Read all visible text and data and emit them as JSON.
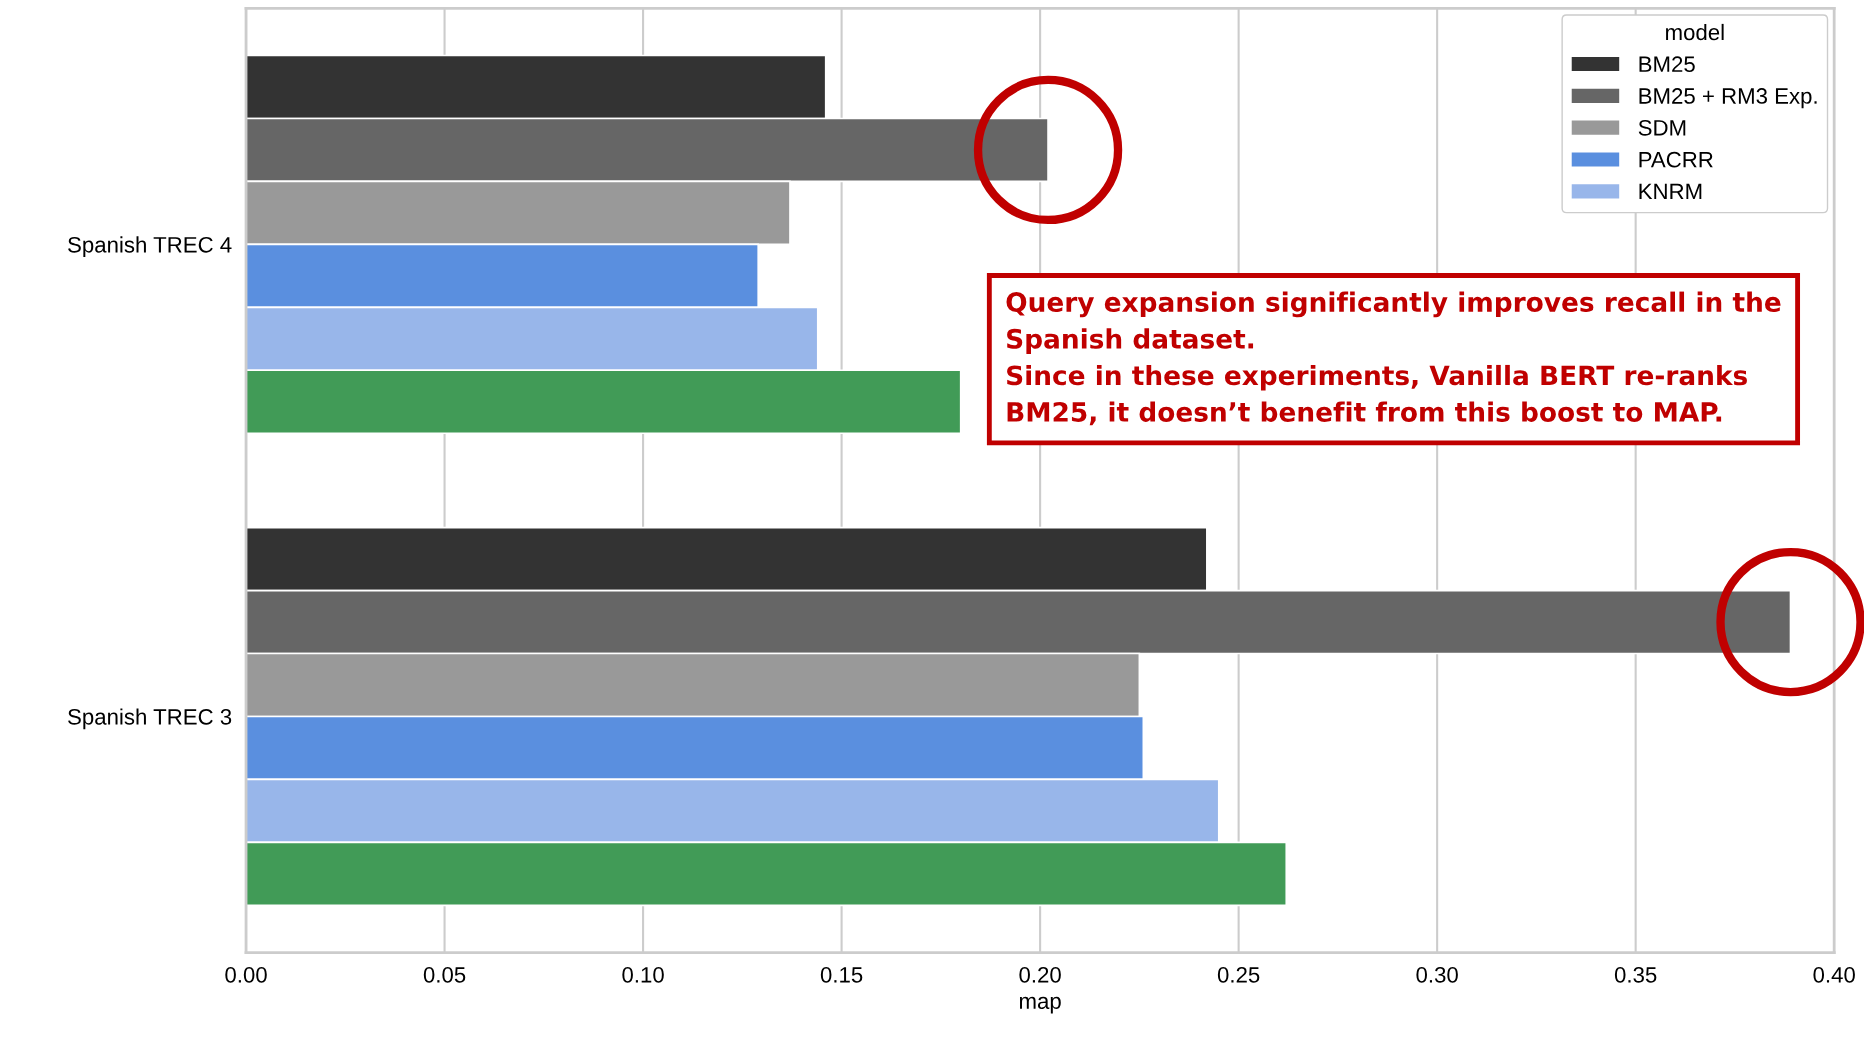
{
  "chart_data": {
    "type": "bar",
    "orientation": "horizontal",
    "xlabel": "map",
    "legend_title": "model",
    "legend": "top right",
    "grid": "x",
    "categories": [
      "Spanish TREC 4",
      "Spanish TREC 3"
    ],
    "xlim": [
      0,
      0.4
    ],
    "xticks": [
      {
        "value": 0,
        "label": "0.00"
      },
      0.05,
      {
        "value": 0.1,
        "label": "0.10"
      },
      0.15,
      {
        "value": 0.2,
        "label": "0.20"
      },
      0.25,
      {
        "value": 0.3,
        "label": "0.30"
      },
      0.35,
      {
        "value": 0.4,
        "label": "0.40"
      }
    ],
    "series": [
      {
        "name": "BM25",
        "color": "#333333",
        "values": [
          0.146,
          0.242
        ]
      },
      {
        "name": "BM25 + RM3 Exp.",
        "color": "#666666",
        "values": [
          0.202,
          0.389
        ]
      },
      {
        "name": "SDM",
        "color": "#999999",
        "values": [
          0.137,
          0.225
        ]
      },
      {
        "name": "PACRR",
        "color": "#5a8fdf",
        "values": [
          0.129,
          0.226
        ]
      },
      {
        "name": "KNRM",
        "color": "#98b6ea",
        "values": [
          0.144,
          0.245
        ]
      },
      {
        "color": "#419b57",
        "values": [
          0.18,
          0.262
        ]
      }
    ],
    "annotations": [
      "Query expansion significantly improves recall in the\nSpanish dataset.\nSince in these experiments, Vanilla BERT re-ranks\nBM25, it doesn’t benefit from this boost to MAP."
    ]
  }
}
